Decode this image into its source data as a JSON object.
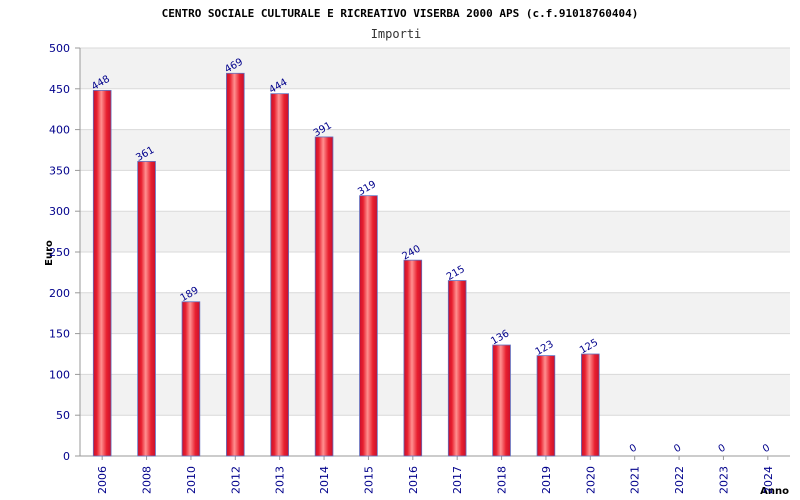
{
  "chart_data": {
    "type": "bar",
    "title": "CENTRO SOCIALE CULTURALE E RICREATIVO VISERBA 2000 APS (c.f.91018760404)",
    "subtitle": "Importi",
    "xlabel": "Anno",
    "ylabel": "Euro",
    "categories": [
      "2006",
      "2008",
      "2010",
      "2012",
      "2013",
      "2014",
      "2015",
      "2016",
      "2017",
      "2018",
      "2019",
      "2020",
      "2021",
      "2022",
      "2023",
      "2024"
    ],
    "values": [
      448,
      361,
      189,
      469,
      444,
      391,
      319,
      240,
      215,
      136,
      123,
      125,
      0,
      0,
      0,
      0
    ],
    "ylim": [
      0,
      500
    ],
    "yticks": [
      0,
      50,
      100,
      150,
      200,
      250,
      300,
      350,
      400,
      450,
      500
    ],
    "grid": true,
    "legend": "none",
    "colors": {
      "bar_edge": "#c8102e",
      "bar_center": "#ff9090",
      "bar_mid": "#e8202f",
      "band_dark": "#f2f2f2",
      "band_light": "#ffffff",
      "tick_text": "#00008b",
      "bar_outline": "#6070c0"
    }
  }
}
